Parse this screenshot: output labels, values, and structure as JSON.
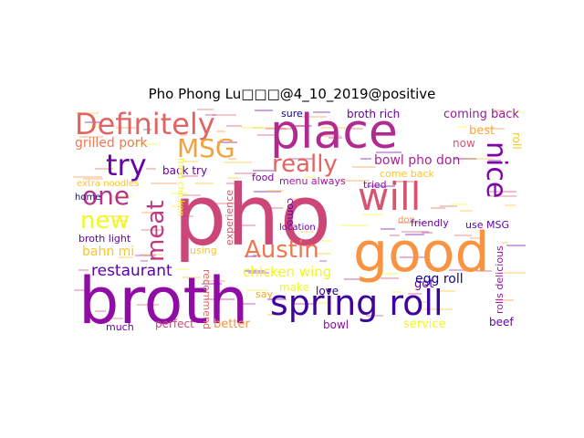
{
  "title": "Pho Phong Lu□□□@4_10_2019@positive",
  "words": [
    {
      "text": "pho",
      "color": "#cc4778"
    },
    {
      "text": "broth",
      "color": "#8f0da4"
    },
    {
      "text": "good",
      "color": "#f89441"
    },
    {
      "text": "place",
      "color": "#b12a90"
    },
    {
      "text": "will",
      "color": "#d5546e"
    },
    {
      "text": "spring roll",
      "color": "#3e049c"
    },
    {
      "text": "Definitely",
      "color": "#e16462"
    },
    {
      "text": "MSG",
      "color": "#f1a340"
    },
    {
      "text": "nice",
      "color": "#7e03a8"
    },
    {
      "text": "try",
      "color": "#6a00a8"
    },
    {
      "text": "one",
      "color": "#b83289"
    },
    {
      "text": "new",
      "color": "#f0f921"
    },
    {
      "text": "meat",
      "color": "#c03a83"
    },
    {
      "text": "really",
      "color": "#e26561"
    },
    {
      "text": "Austin",
      "color": "#ed7953"
    },
    {
      "text": "restaurant",
      "color": "#5c01a6"
    },
    {
      "text": "chicken wing",
      "color": "#f0f921"
    },
    {
      "text": "grilled pork",
      "color": "#ed7953"
    },
    {
      "text": "bahn mi",
      "color": "#fdc328"
    },
    {
      "text": "bowl pho don",
      "color": "#a92395"
    },
    {
      "text": "broth rich",
      "color": "#6a00a8"
    },
    {
      "text": "coming back",
      "color": "#9c179e"
    },
    {
      "text": "egg roll",
      "color": "#0d0887"
    },
    {
      "text": "back try",
      "color": "#6a00a8"
    },
    {
      "text": "best",
      "color": "#fca636"
    },
    {
      "text": "now",
      "color": "#d8576b"
    },
    {
      "text": "roll",
      "color": "#fdc328"
    },
    {
      "text": "love",
      "color": "#2a0593"
    },
    {
      "text": "food",
      "color": "#7e03a8"
    },
    {
      "text": "menu always",
      "color": "#9c179e"
    },
    {
      "text": "come back",
      "color": "#fdc328"
    },
    {
      "text": "tried",
      "color": "#8b0aa5"
    },
    {
      "text": "friendly",
      "color": "#6a00a8"
    },
    {
      "text": "use MSG",
      "color": "#5c01a6"
    },
    {
      "text": "fried chicken",
      "color": "#f0f921"
    },
    {
      "text": "broth light",
      "color": "#5c01a6"
    },
    {
      "text": "extra noodles",
      "color": "#fdc328"
    },
    {
      "text": "sure",
      "color": "#0d0887"
    },
    {
      "text": "recommend",
      "color": "#e16462"
    },
    {
      "text": "make",
      "color": "#f0f921"
    },
    {
      "text": "using",
      "color": "#fdc328"
    },
    {
      "text": "got",
      "color": "#5c01a6"
    },
    {
      "text": "service",
      "color": "#f0f921"
    },
    {
      "text": "beef",
      "color": "#5c01a6"
    },
    {
      "text": "better",
      "color": "#f89441"
    },
    {
      "text": "perfect",
      "color": "#cc4778"
    },
    {
      "text": "bowl",
      "color": "#8f0da4"
    },
    {
      "text": "say",
      "color": "#fca636"
    },
    {
      "text": "come",
      "color": "#5c01a6"
    },
    {
      "text": "experience",
      "color": "#d8576b"
    },
    {
      "text": "rolls delicious",
      "color": "#9c179e"
    },
    {
      "text": "much",
      "color": "#6a00a8"
    },
    {
      "text": "home",
      "color": "#0d0887"
    },
    {
      "text": "don",
      "color": "#f89441"
    },
    {
      "text": "location",
      "color": "#6a00a8"
    }
  ]
}
